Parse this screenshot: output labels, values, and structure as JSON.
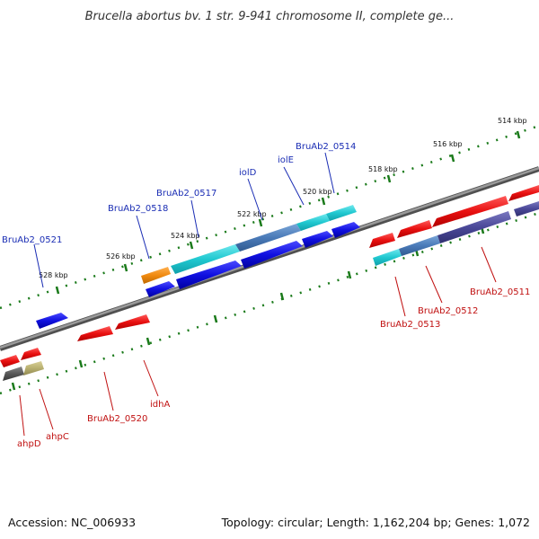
{
  "title": "Brucella abortus bv. 1 str. 9-941 chromosome II, complete ge...",
  "footer": {
    "accession": "Accession: NC_006933",
    "topology": "Topology: circular; Length: 1,162,204 bp; Genes: 1,072"
  },
  "scale_labels": [
    "514 kbp",
    "516 kbp",
    "518 kbp",
    "520 kbp",
    "522 kbp",
    "524 kbp",
    "526 kbp",
    "528 kbp"
  ],
  "genes_top": [
    "BruAb2_0514",
    "iolE",
    "iolD",
    "BruAb2_0517",
    "BruAb2_0518",
    "BruAb2_0521"
  ],
  "genes_bottom": [
    "BruAb2_0511",
    "BruAb2_0512",
    "BruAb2_0513",
    "idhA",
    "BruAb2_0520",
    "ahpC",
    "ahpD"
  ],
  "colors": {
    "backbone": "#808080",
    "forward_gene": "#1010e0",
    "reverse_gene": "#e81010",
    "cyan_gene": "#20c8d0",
    "steel_gene": "#4a7ab8",
    "purple_gene": "#4a4898",
    "orange_gene": "#f08a10",
    "olive_gene": "#b8b070",
    "gray_gene": "#585858",
    "tick": "#1a7a1a",
    "label_blue": "#1a2db4",
    "label_red": "#c01010"
  }
}
